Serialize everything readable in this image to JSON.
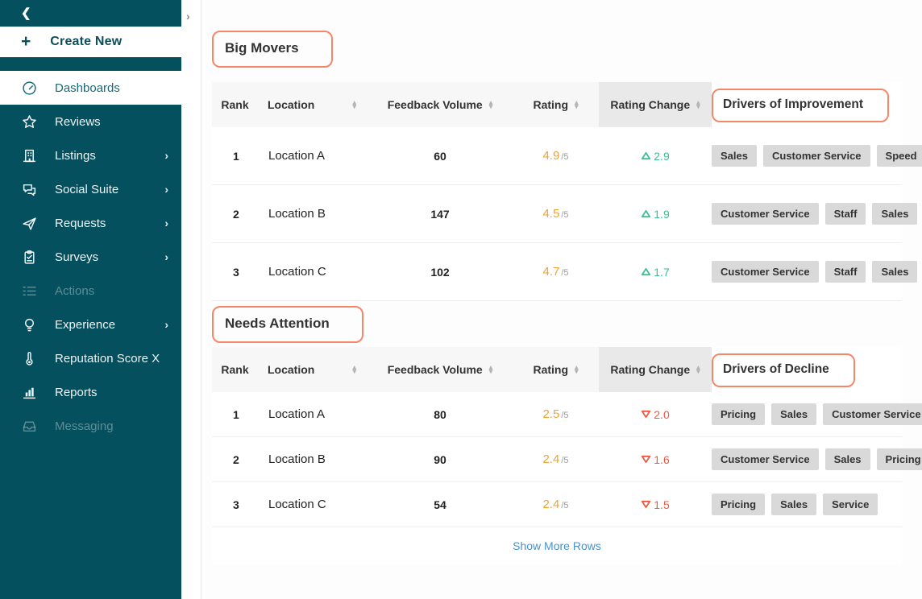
{
  "colors": {
    "sidebar_teal": "#05505e",
    "active_item_teal": "#196a7a",
    "annotation_orange": "#f58667",
    "rating_orange": "#f0a232",
    "positive_green": "#3dbd92",
    "negative_red": "#f05640",
    "link_blue": "#4a92c8",
    "chip_gray": "#d9d9d9"
  },
  "sidebar": {
    "collapse_icon": "chevron-left",
    "create_new_label": "Create New",
    "items": [
      {
        "label": "Dashboards",
        "icon": "gauge-icon",
        "state": "active",
        "chevron": false
      },
      {
        "label": "Reviews",
        "icon": "star-icon",
        "state": "normal",
        "chevron": false
      },
      {
        "label": "Listings",
        "icon": "building-icon",
        "state": "normal",
        "chevron": true
      },
      {
        "label": "Social Suite",
        "icon": "chat-icon",
        "state": "normal",
        "chevron": true
      },
      {
        "label": "Requests",
        "icon": "paper-plane-icon",
        "state": "normal",
        "chevron": true
      },
      {
        "label": "Surveys",
        "icon": "clipboard-icon",
        "state": "normal",
        "chevron": true
      },
      {
        "label": "Actions",
        "icon": "checklist-icon",
        "state": "disabled",
        "chevron": false
      },
      {
        "label": "Experience",
        "icon": "lightbulb-icon",
        "state": "normal",
        "chevron": true
      },
      {
        "label": "Reputation Score X",
        "icon": "thermometer-icon",
        "state": "normal",
        "chevron": false
      },
      {
        "label": "Reports",
        "icon": "bar-chart-icon",
        "state": "normal",
        "chevron": false
      },
      {
        "label": "Messaging",
        "icon": "inbox-icon",
        "state": "disabled",
        "chevron": false
      }
    ]
  },
  "main": {
    "expand_icon": "chevron-right",
    "rating_suffix": "/5",
    "show_more_label": "Show More Rows",
    "sections": [
      {
        "title": "Big Movers",
        "drivers_header": "Drivers of Improvement",
        "trend": "up",
        "columns": [
          {
            "label": "Rank",
            "sortable": false
          },
          {
            "label": "Location",
            "sortable": true
          },
          {
            "label": "Feedback Volume",
            "sortable": true
          },
          {
            "label": "Rating",
            "sortable": true
          },
          {
            "label": "Rating Change",
            "sortable": true,
            "highlighted": true
          }
        ],
        "rows": [
          {
            "rank": "1",
            "location": "Location A",
            "feedback_volume": "60",
            "rating": "4.9",
            "rating_change": "2.9",
            "drivers": [
              "Sales",
              "Customer Service",
              "Speed"
            ]
          },
          {
            "rank": "2",
            "location": "Location B",
            "feedback_volume": "147",
            "rating": "4.5",
            "rating_change": "1.9",
            "drivers": [
              "Customer Service",
              "Staff",
              "Sales"
            ]
          },
          {
            "rank": "3",
            "location": "Location C",
            "feedback_volume": "102",
            "rating": "4.7",
            "rating_change": "1.7",
            "drivers": [
              "Customer Service",
              "Staff",
              "Sales"
            ]
          }
        ],
        "show_more": false
      },
      {
        "title": "Needs Attention",
        "drivers_header": "Drivers of Decline",
        "trend": "down",
        "columns": [
          {
            "label": "Rank",
            "sortable": false
          },
          {
            "label": "Location",
            "sortable": true
          },
          {
            "label": "Feedback Volume",
            "sortable": true
          },
          {
            "label": "Rating",
            "sortable": true
          },
          {
            "label": "Rating Change",
            "sortable": true,
            "highlighted": true
          }
        ],
        "rows": [
          {
            "rank": "1",
            "location": "Location A",
            "feedback_volume": "80",
            "rating": "2.5",
            "rating_change": "2.0",
            "drivers": [
              "Pricing",
              "Sales",
              "Customer Service"
            ]
          },
          {
            "rank": "2",
            "location": "Location B",
            "feedback_volume": "90",
            "rating": "2.4",
            "rating_change": "1.6",
            "drivers": [
              "Customer Service",
              "Sales",
              "Pricing"
            ]
          },
          {
            "rank": "3",
            "location": "Location C",
            "feedback_volume": "54",
            "rating": "2.4",
            "rating_change": "1.5",
            "drivers": [
              "Pricing",
              "Sales",
              "Service"
            ]
          }
        ],
        "show_more": true
      }
    ]
  }
}
